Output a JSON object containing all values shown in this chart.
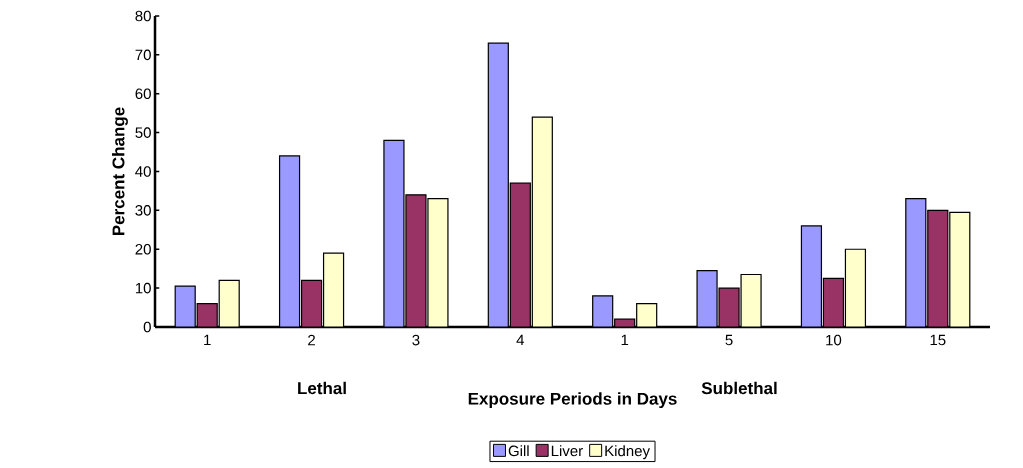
{
  "chart_data": {
    "type": "bar",
    "xlabel": "Exposure Periods in Days",
    "ylabel": "Percent Change",
    "categories": [
      "1",
      "2",
      "3",
      "4",
      "1",
      "5",
      "10",
      "15"
    ],
    "series": [
      {
        "name": "Gill",
        "color": "#9999ff",
        "values": [
          10.5,
          44,
          48,
          73,
          8,
          14.5,
          26,
          33
        ]
      },
      {
        "name": "Liver",
        "color": "#993366",
        "values": [
          6,
          12,
          34,
          37,
          2,
          10,
          12.5,
          30
        ]
      },
      {
        "name": "Kidney",
        "color": "#ffffcc",
        "values": [
          12,
          19,
          33,
          54,
          6,
          13.5,
          20,
          29.5
        ]
      }
    ],
    "ylim": [
      0,
      80
    ],
    "yticks": [
      0,
      10,
      20,
      30,
      40,
      50,
      60,
      70,
      80
    ],
    "legend": "bottom",
    "annotations": [
      "Lethal",
      "Sublethal"
    ]
  }
}
